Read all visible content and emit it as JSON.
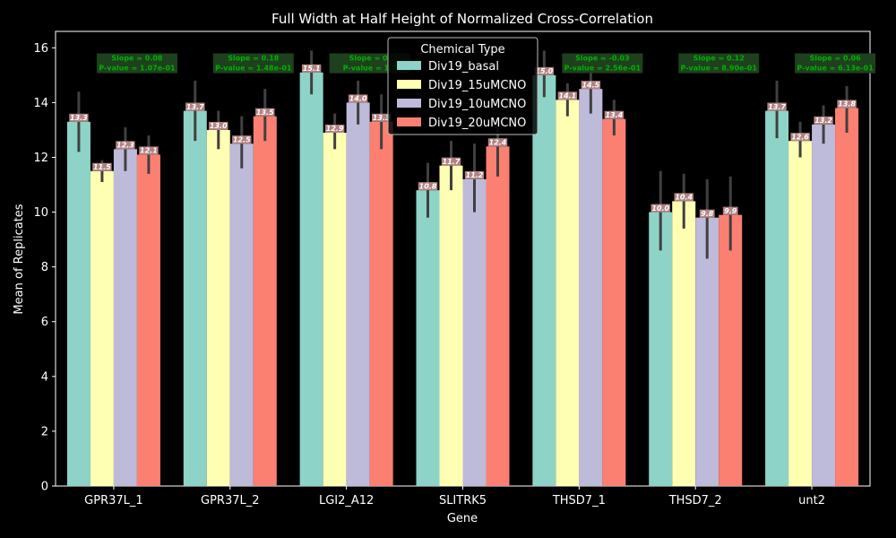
{
  "chart_data": {
    "type": "bar",
    "title": "Full Width at Half Height of Normalized Cross-Correlation",
    "xlabel": "Gene",
    "ylabel": "Mean of Replicates",
    "ylim": [
      0,
      16.6
    ],
    "yticks": [
      0,
      2,
      4,
      6,
      8,
      10,
      12,
      14,
      16
    ],
    "grid": false,
    "legend_title": "Chemical Type",
    "legend_position": "top-center",
    "categories": [
      "GPR37L_1",
      "GPR37L_2",
      "LGI2_A12",
      "SLITRK5",
      "THSD7_1",
      "THSD7_2",
      "unt2"
    ],
    "series": [
      {
        "name": "Div19_basal",
        "color": "#8dd3c7",
        "values": [
          13.3,
          13.7,
          15.1,
          10.8,
          15.0,
          10.0,
          13.7
        ],
        "value_labels": [
          "13.3",
          "13.7",
          "15.1",
          "10.8",
          "15.0",
          "10.0",
          "13.7"
        ],
        "err_low": [
          12.2,
          12.6,
          14.3,
          9.8,
          14.2,
          8.6,
          12.7
        ],
        "err_high": [
          14.4,
          14.8,
          15.9,
          11.8,
          15.9,
          11.5,
          14.8
        ]
      },
      {
        "name": "Div19_15uMCNO",
        "color": "#ffffb3",
        "values": [
          11.5,
          13.0,
          12.9,
          11.7,
          14.1,
          10.4,
          12.6
        ],
        "value_labels": [
          "11.5",
          "13.0",
          "12.9",
          "11.7",
          "14.1",
          "10.4",
          "12.6"
        ],
        "err_low": [
          11.1,
          12.3,
          12.3,
          10.8,
          13.5,
          9.4,
          12.0
        ],
        "err_high": [
          11.9,
          13.7,
          13.6,
          12.6,
          14.7,
          11.4,
          13.3
        ]
      },
      {
        "name": "Div19_10uMCNO",
        "color": "#bebada",
        "values": [
          12.3,
          12.5,
          14.0,
          11.2,
          14.5,
          9.8,
          13.2
        ],
        "value_labels": [
          "12.3",
          "12.5",
          "14.0",
          "11.2",
          "14.5",
          "9.8",
          "13.2"
        ],
        "err_low": [
          11.5,
          11.6,
          13.2,
          10.0,
          13.6,
          8.3,
          12.5
        ],
        "err_high": [
          13.1,
          13.5,
          14.8,
          12.5,
          15.4,
          11.2,
          13.9
        ]
      },
      {
        "name": "Div19_20uMCNO",
        "color": "#fb8072",
        "values": [
          12.1,
          13.5,
          13.3,
          12.4,
          13.4,
          9.9,
          13.8
        ],
        "value_labels": [
          "12.1",
          "13.5",
          "13.3",
          "12.4",
          "13.4",
          "9.9",
          "13.8"
        ],
        "err_low": [
          11.4,
          12.6,
          12.3,
          11.3,
          12.8,
          8.6,
          12.9
        ],
        "err_high": [
          12.8,
          14.5,
          14.3,
          13.5,
          14.1,
          11.3,
          14.6
        ]
      }
    ],
    "annotations": [
      {
        "category": "GPR37L_1",
        "slope": "Slope = 0.08",
        "pvalue": "P-value = 1.07e-01"
      },
      {
        "category": "GPR37L_2",
        "slope": "Slope = 0.18",
        "pvalue": "P-value = 1.48e-01"
      },
      {
        "category": "LGI2_A12",
        "slope": "Slope = 0.",
        "pvalue": "P-value = 1.7"
      },
      {
        "category": "SLITRK5",
        "slope": "",
        "pvalue": ""
      },
      {
        "category": "THSD7_1",
        "slope": "Slope = -0.03",
        "pvalue": "P-value = 2.56e-01"
      },
      {
        "category": "THSD7_2",
        "slope": "Slope = 0.12",
        "pvalue": "P-value = 8.90e-01"
      },
      {
        "category": "unt2",
        "slope": "Slope = 0.06",
        "pvalue": "P-value = 6.13e-01"
      }
    ],
    "colors": {
      "background": "#000000",
      "axis": "#ffffff",
      "errorbar": "#404040",
      "label_bg": "#c49090",
      "stat_bg": "#1e401e",
      "stat_text": "#00b000"
    }
  }
}
